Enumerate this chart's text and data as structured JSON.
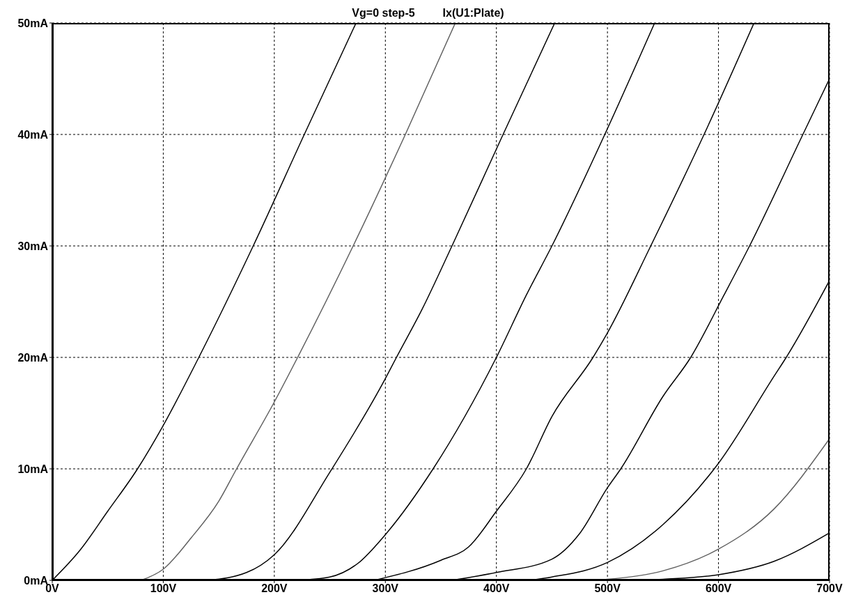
{
  "chart_data": {
    "type": "line",
    "title": "Vg=0 step-5",
    "subtitle": "Ix(U1:Plate)",
    "xlim": [
      0,
      700
    ],
    "xticks": [
      {
        "value": 0,
        "label": "0V"
      },
      {
        "value": 100,
        "label": "100V"
      },
      {
        "value": 200,
        "label": "200V"
      },
      {
        "value": 300,
        "label": "300V"
      },
      {
        "value": 400,
        "label": "400V"
      },
      {
        "value": 500,
        "label": "500V"
      },
      {
        "value": 600,
        "label": "600V"
      },
      {
        "value": 700,
        "label": "700V"
      }
    ],
    "ylim": [
      0,
      50
    ],
    "yticks": [
      {
        "value": 0,
        "label": "0mA"
      },
      {
        "value": 10,
        "label": "10mA"
      },
      {
        "value": 20,
        "label": "20mA"
      },
      {
        "value": 30,
        "label": "30mA"
      },
      {
        "value": 40,
        "label": "40mA"
      },
      {
        "value": 50,
        "label": "50mA"
      }
    ],
    "grid": true,
    "line_style": "solid",
    "series": [
      {
        "color": "#000000",
        "x": [
          0,
          25,
          50,
          76.8,
          100,
          132,
          181,
          227,
          273.6
        ],
        "values": [
          0,
          2.7,
          6.2,
          10,
          13.9,
          20,
          30,
          40,
          50
        ]
      },
      {
        "color": "#606060",
        "x": [
          80,
          100,
          125,
          150,
          166,
          200,
          221,
          271,
          318,
          363
        ],
        "values": [
          0,
          1.0,
          3.8,
          7.1,
          10,
          16,
          20,
          30,
          40,
          50
        ]
      },
      {
        "color": "#000000",
        "x": [
          140,
          175,
          200,
          250,
          300,
          310,
          333,
          360,
          406,
          452.5
        ],
        "values": [
          0,
          0.7,
          2.3,
          9.7,
          18.1,
          20,
          24.3,
          30,
          40,
          50
        ]
      },
      {
        "color": "#000000",
        "x": [
          220,
          250,
          275,
          300,
          343,
          400,
          427,
          450,
          497.6,
          542.5
        ],
        "values": [
          0,
          0.3,
          1.5,
          4.1,
          10,
          20,
          25.6,
          30,
          40,
          50
        ]
      },
      {
        "color": "#000000",
        "x": [
          290,
          350,
          375,
          400,
          427,
          450,
          487,
          500,
          539,
          587,
          632
        ],
        "values": [
          0,
          1.8,
          3.0,
          6.2,
          10,
          14.7,
          20,
          22.2,
          30,
          40,
          50
        ]
      },
      {
        "color": "#000000",
        "x": [
          360,
          400,
          450,
          475,
          500,
          512,
          550,
          575,
          605,
          628,
          676,
          700
        ],
        "values": [
          0,
          0.7,
          1.9,
          4.2,
          8.3,
          10,
          16.5,
          20,
          25.6,
          30,
          40,
          45
        ]
      },
      {
        "color": "#000000",
        "x": [
          430,
          450,
          500,
          550,
          600,
          650,
          661,
          700
        ],
        "values": [
          0,
          0.3,
          1.6,
          5.0,
          10.5,
          18.3,
          20,
          26.9
        ]
      },
      {
        "color": "#606060",
        "x": [
          480,
          500,
          550,
          600,
          650,
          700
        ],
        "values": [
          0,
          0.1,
          0.85,
          2.8,
          6.4,
          12.7
        ]
      },
      {
        "color": "#000000",
        "x": [
          530,
          550,
          600,
          650,
          700
        ],
        "values": [
          0,
          0.1,
          0.5,
          1.7,
          4.25
        ]
      }
    ]
  }
}
